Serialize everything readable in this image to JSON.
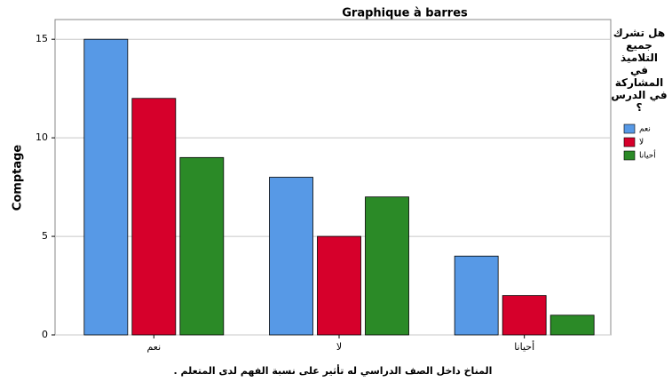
{
  "chart_data": {
    "type": "bar",
    "title": "Graphique à barres",
    "y_label": "Comptage",
    "x_label": "المناخ داخل الصف الدراسي له تأثير على نسبة الفهم لدى المتعلم .",
    "legend_title": "هل تشرك جميع التلاميذ في المشاركة في الدرس ؟",
    "categories": [
      "نعم",
      "لا",
      "أحيانا"
    ],
    "series": [
      {
        "name": "نعم",
        "color": "#5799e6",
        "values": [
          15,
          8,
          4
        ]
      },
      {
        "name": "لا",
        "color": "#d6002b",
        "values": [
          12,
          5,
          2
        ]
      },
      {
        "name": "أحيانا",
        "color": "#2b8a27",
        "values": [
          9,
          7,
          1
        ]
      }
    ],
    "ylim": [
      0,
      16
    ],
    "yticks": [
      0,
      5,
      10,
      15
    ],
    "grid": true,
    "legend": "right"
  }
}
